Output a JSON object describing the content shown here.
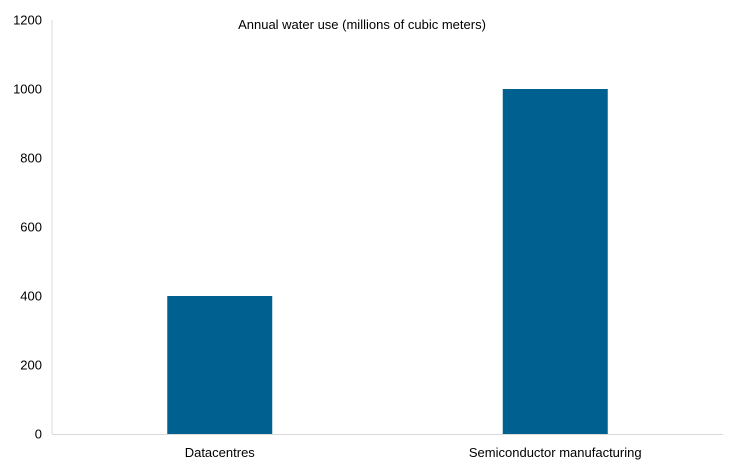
{
  "chart_data": {
    "type": "bar",
    "title": "Annual water use (millions of cubic meters)",
    "categories": [
      "Datacentres",
      "Semiconductor manufacturing"
    ],
    "values": [
      400,
      1000
    ],
    "xlabel": "",
    "ylabel": "",
    "ylim": [
      0,
      1200
    ],
    "yticks": [
      "0",
      "200",
      "400",
      "600",
      "800",
      "1000",
      "1200"
    ],
    "grid": false,
    "legend": "none",
    "bar_color": "#006090"
  }
}
